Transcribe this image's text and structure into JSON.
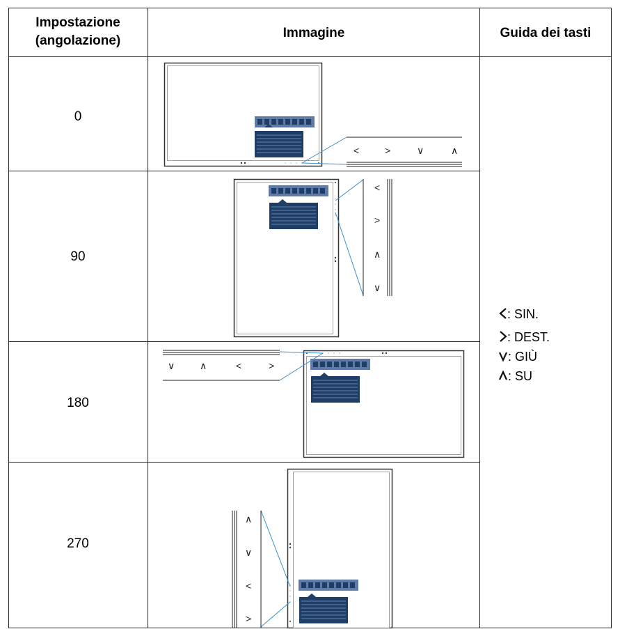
{
  "header": {
    "col1_line1": "Impostazione",
    "col1_line2": "(angolazione)",
    "col2": "Immagine",
    "col3": "Guida dei tasti"
  },
  "rows": [
    {
      "angle": "0"
    },
    {
      "angle": "90"
    },
    {
      "angle": "180"
    },
    {
      "angle": "270"
    }
  ],
  "key_symbols": {
    "left": "<",
    "right": ">",
    "down": "∨",
    "up": "∧"
  },
  "legend": [
    {
      "icon": "chevron-left-icon",
      "text": ": SIN."
    },
    {
      "icon": "chevron-right-icon",
      "text": ": DEST."
    },
    {
      "icon": "chevron-down-icon",
      "text": ": GIÙ"
    },
    {
      "icon": "chevron-up-icon",
      "text": ": SU"
    }
  ],
  "colors": {
    "osd_bar": "#5f7aa6",
    "osd_menu": "#1f3e66",
    "menu_lines": "#7f9bc4",
    "callout_line": "#3a8fc8",
    "border": "#222222"
  }
}
